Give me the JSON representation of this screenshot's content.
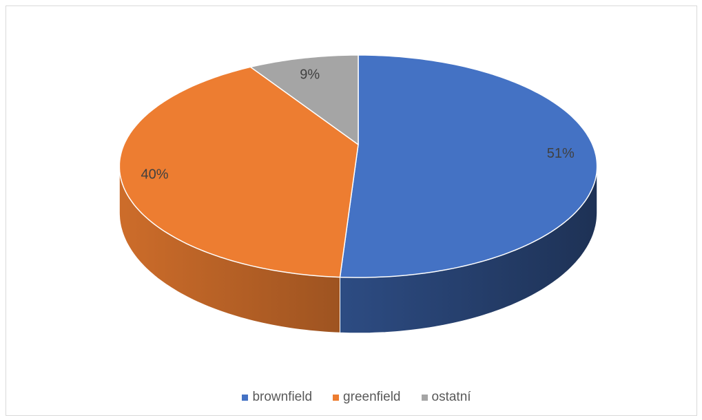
{
  "chart_data": {
    "type": "pie",
    "style": "3d",
    "categories": [
      "brownfield",
      "greenfield",
      "ostatní"
    ],
    "values": [
      51,
      40,
      9
    ],
    "data_labels": [
      "51%",
      "40%",
      "9%"
    ],
    "colors": [
      "#4472C4",
      "#ED7D31",
      "#A5A5A5"
    ],
    "legend": {
      "position": "bottom"
    }
  }
}
